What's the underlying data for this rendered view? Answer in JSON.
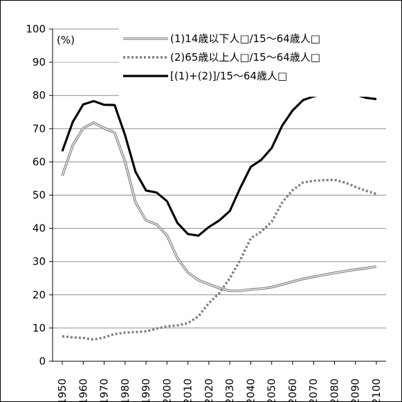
{
  "chart_data": {
    "type": "line",
    "unit_label": "(%)",
    "xlabel": "",
    "ylabel": "",
    "ylim": [
      0,
      100
    ],
    "yticks": [
      0,
      10,
      20,
      30,
      40,
      50,
      60,
      70,
      80,
      90,
      100
    ],
    "xlim": [
      1950,
      2100
    ],
    "xticks": [
      "1950",
      "1960",
      "1970",
      "1980",
      "1990",
      "2000",
      "2010",
      "2020",
      "2030",
      "2040",
      "2050",
      "2060",
      "2070",
      "2080",
      "2090",
      "2100"
    ],
    "grid": "horizontal",
    "legend_position": "top-right",
    "x": [
      1950,
      1955,
      1960,
      1965,
      1970,
      1975,
      1980,
      1985,
      1990,
      1995,
      2000,
      2005,
      2010,
      2015,
      2020,
      2025,
      2030,
      2035,
      2040,
      2045,
      2050,
      2055,
      2060,
      2065,
      2070,
      2075,
      2080,
      2085,
      2090,
      2095,
      2100
    ],
    "series": [
      {
        "name": "(1)14歳以下人□/15～64歳人□",
        "style": "double",
        "color": "#7f7f7f",
        "values": [
          55.8,
          65.0,
          70.2,
          71.8,
          70.2,
          68.8,
          60.0,
          47.8,
          42.4,
          41.2,
          37.9,
          31.0,
          26.7,
          24.4,
          23.2,
          22.0,
          21.2,
          21.2,
          21.6,
          21.8,
          22.3,
          23.1,
          24.0,
          24.8,
          25.4,
          26.0,
          26.6,
          27.1,
          27.6,
          28.0,
          28.5
        ]
      },
      {
        "name": "(2)65歳以上人□/15～64歳人□",
        "style": "dotted",
        "color": "#7f7f7f",
        "values": [
          7.5,
          7.2,
          7.0,
          6.5,
          7.2,
          8.2,
          8.6,
          8.8,
          9.0,
          9.8,
          10.5,
          10.8,
          11.5,
          13.5,
          17.5,
          20.5,
          25.0,
          30.5,
          37.0,
          39.0,
          42.0,
          47.8,
          51.5,
          53.8,
          54.3,
          54.5,
          54.6,
          53.8,
          52.5,
          51.3,
          50.4
        ]
      },
      {
        "name": "[(1)+(2)]/15～64歳人□",
        "style": "solid",
        "color": "#000000",
        "values": [
          63.2,
          72.0,
          77.3,
          78.3,
          77.2,
          77.1,
          68.0,
          57.0,
          51.4,
          50.8,
          48.2,
          41.6,
          38.3,
          37.8,
          40.4,
          42.4,
          45.2,
          52.2,
          58.5,
          60.6,
          64.2,
          70.9,
          75.5,
          78.6,
          79.7,
          80.4,
          81.2,
          80.9,
          80.3,
          79.3,
          78.9
        ]
      }
    ]
  }
}
